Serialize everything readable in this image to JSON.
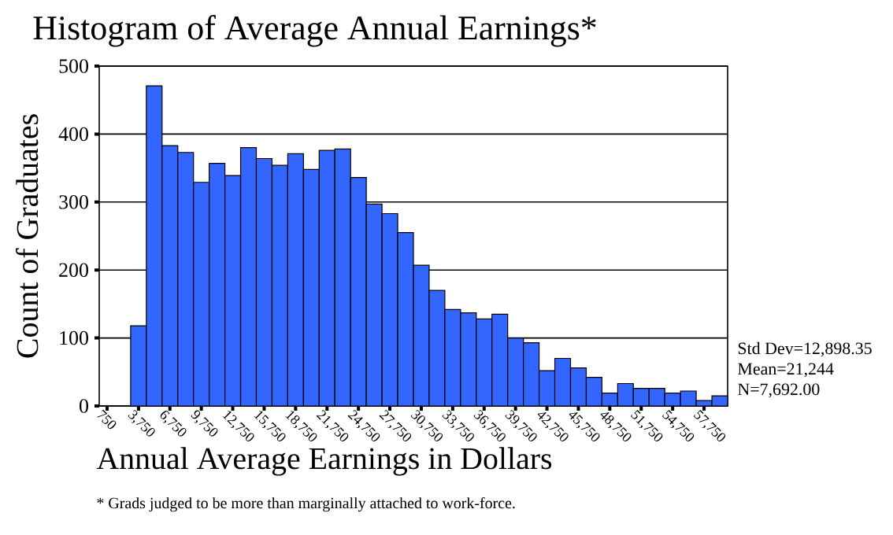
{
  "chart_data": {
    "type": "histogram",
    "title": "Histogram of Average Annual Earnings*",
    "xlabel": "Annual Average Earnings in Dollars",
    "ylabel": "Count of Graduates",
    "bins": [
      3000,
      4500,
      6000,
      7500,
      9000,
      10500,
      12000,
      13500,
      15000,
      16500,
      18000,
      19500,
      21000,
      22500,
      24000,
      25500,
      27000,
      28500,
      30000,
      31500,
      33000,
      34500,
      36000,
      37500,
      39000,
      40500,
      42000,
      43500,
      45000,
      46500,
      48000,
      49500,
      51000,
      52500,
      54000,
      55500,
      57000,
      58500,
      60000
    ],
    "values": [
      118,
      471,
      383,
      373,
      329,
      357,
      339,
      380,
      364,
      354,
      371,
      348,
      376,
      378,
      336,
      297,
      283,
      255,
      207,
      170,
      142,
      137,
      128,
      135,
      100,
      93,
      52,
      70,
      56,
      42,
      19,
      33,
      26,
      26,
      19,
      22,
      8,
      15
    ],
    "color": "#3366ff",
    "xlim": [
      0,
      60000
    ],
    "ylim": [
      0,
      500
    ],
    "yticks": [
      0,
      100,
      200,
      300,
      400,
      500
    ],
    "xticks": [
      {
        "value": 750,
        "label": "750"
      },
      {
        "value": 3750,
        "label": "3,750"
      },
      {
        "value": 6750,
        "label": "6,750"
      },
      {
        "value": 9750,
        "label": "9,750"
      },
      {
        "value": 12750,
        "label": "12,750"
      },
      {
        "value": 15750,
        "label": "15,750"
      },
      {
        "value": 18750,
        "label": "18,750"
      },
      {
        "value": 21750,
        "label": "21,750"
      },
      {
        "value": 24750,
        "label": "24,750"
      },
      {
        "value": 27750,
        "label": "27,750"
      },
      {
        "value": 30750,
        "label": "30,750"
      },
      {
        "value": 33750,
        "label": "33,750"
      },
      {
        "value": 36750,
        "label": "36,750"
      },
      {
        "value": 39750,
        "label": "39,750"
      },
      {
        "value": 42750,
        "label": "42,750"
      },
      {
        "value": 45750,
        "label": "45,750"
      },
      {
        "value": 48750,
        "label": "48,750"
      },
      {
        "value": 51750,
        "label": "51,750"
      },
      {
        "value": 54750,
        "label": "54,750"
      },
      {
        "value": 57750,
        "label": "57,750"
      }
    ],
    "grid": "y",
    "annotations": [
      "Std Dev=12,898.35",
      "Mean=21,244",
      "N=7,692.00",
      "* Grads judged to be more than marginally attached to work-force."
    ]
  }
}
